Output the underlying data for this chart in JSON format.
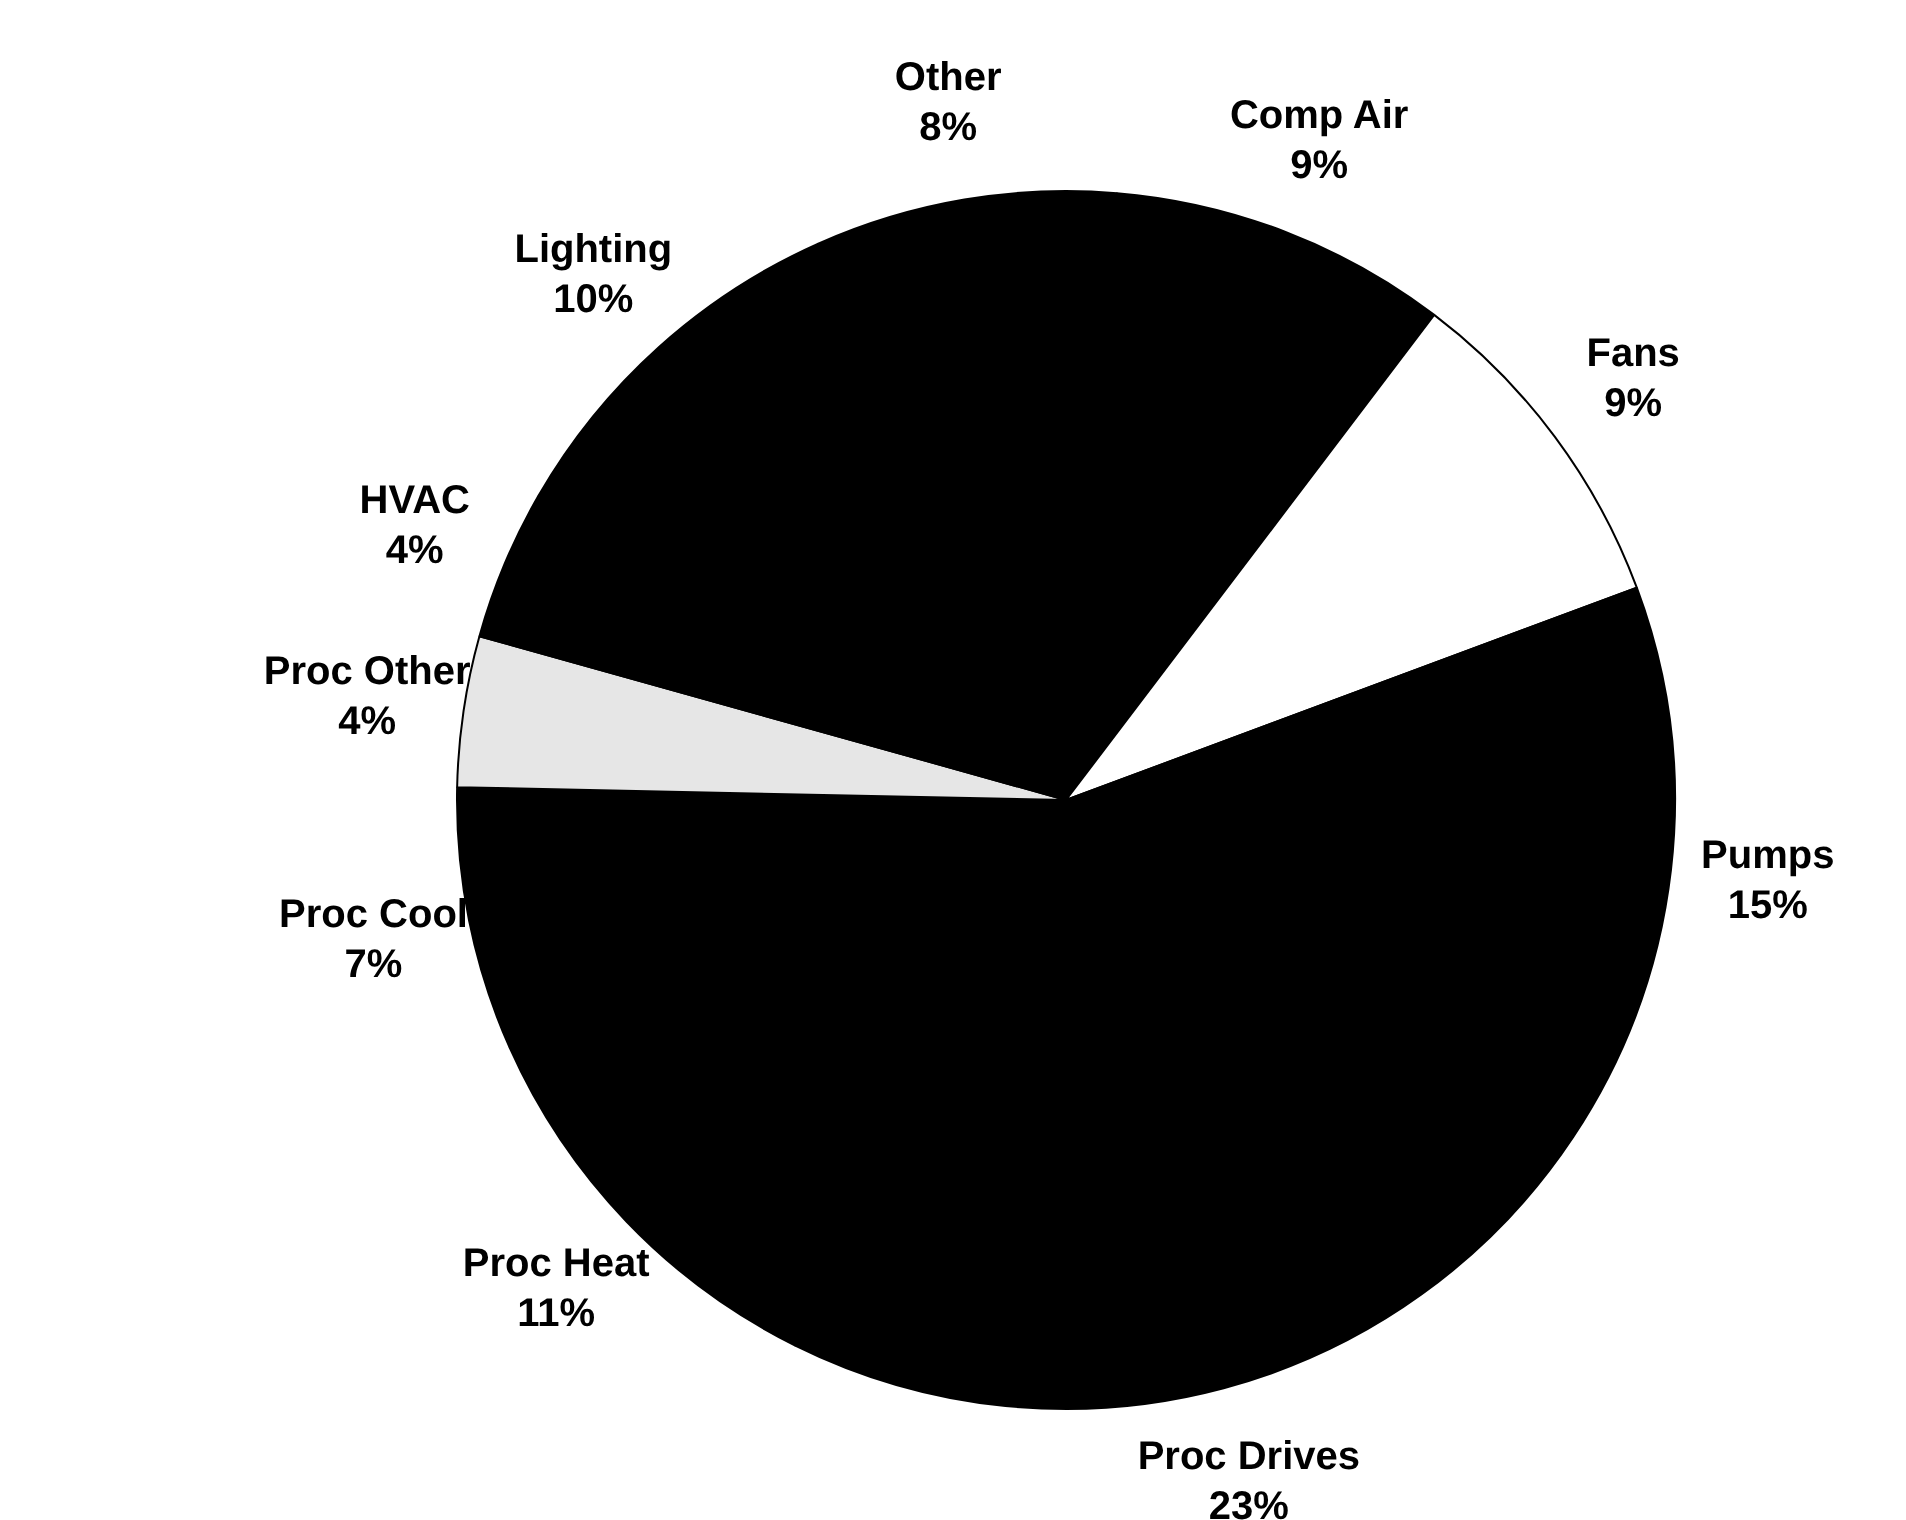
{
  "chart_data": {
    "type": "pie",
    "categories": [
      "Other",
      "Comp Air",
      "Fans",
      "Pumps",
      "Proc Drives",
      "Proc Heat",
      "Proc Cool",
      "Proc Other",
      "HVAC",
      "Lighting"
    ],
    "values": [
      8,
      9,
      9,
      15,
      23,
      11,
      7,
      4,
      4,
      10
    ],
    "value_labels": [
      "8%",
      "9%",
      "9%",
      "15%",
      "23%",
      "11%",
      "7%",
      "4%",
      "4%",
      "10%"
    ],
    "colors": [
      "#000000",
      "#000000",
      "#ffffff",
      "#000000",
      "#000000",
      "#000000",
      "#000000",
      "#e6e6e6",
      "#000000",
      "#000000"
    ],
    "legend": false
  }
}
